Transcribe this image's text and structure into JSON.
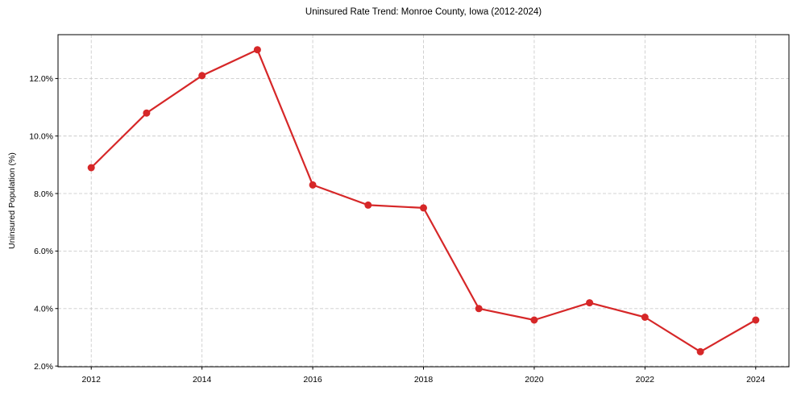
{
  "chart_data": {
    "type": "line",
    "title": "Uninsured Rate Trend: Monroe County, Iowa (2012-2024)",
    "xlabel": "",
    "ylabel": "Uninsured Population (%)",
    "x": [
      2012,
      2013,
      2014,
      2015,
      2016,
      2017,
      2018,
      2019,
      2020,
      2021,
      2022,
      2023,
      2024
    ],
    "values": [
      8.9,
      10.8,
      12.1,
      13.0,
      8.3,
      7.6,
      7.5,
      4.0,
      3.6,
      4.2,
      3.7,
      2.5,
      3.6
    ],
    "xticks": {
      "values": [
        2012,
        2014,
        2016,
        2018,
        2020,
        2022,
        2024
      ],
      "labels": [
        "2012",
        "2014",
        "2016",
        "2018",
        "2020",
        "2022",
        "2024"
      ]
    },
    "yticks": {
      "values": [
        2,
        4,
        6,
        8,
        10,
        12
      ],
      "labels": [
        "2.0%",
        "4.0%",
        "6.0%",
        "8.0%",
        "10.0%",
        "12.0%"
      ]
    },
    "xlim": [
      2011.4,
      2024.6
    ],
    "ylim": [
      1.975,
      13.525
    ],
    "grid": true,
    "legend": false,
    "line_color": "#d62728",
    "marker": "circle",
    "grid_color": "#cccccc",
    "spine_color": "#000000",
    "background": "#ffffff"
  }
}
